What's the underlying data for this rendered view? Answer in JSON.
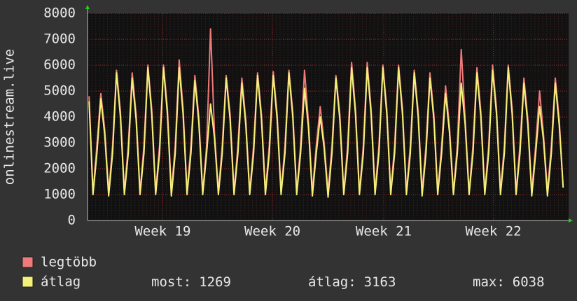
{
  "chart_data": {
    "type": "line",
    "y_label": "onlinestream.live",
    "x": [
      0.1,
      0.35,
      0.6,
      0.85,
      1.1,
      1.35,
      1.6,
      1.85,
      2.1,
      2.35,
      2.6,
      2.85,
      3.1,
      3.35,
      3.6,
      3.85,
      4.1,
      4.35,
      4.6,
      4.85,
      5.1,
      5.35,
      5.6,
      5.85,
      6.1,
      6.35,
      6.6,
      6.85,
      7.1,
      7.35,
      7.6,
      7.85,
      8.1,
      8.35,
      8.6,
      8.85,
      9.1,
      9.35,
      9.6,
      9.85,
      10.1,
      10.35,
      10.6,
      10.85,
      11.1,
      11.35,
      11.6,
      11.85,
      12.1,
      12.35,
      12.6,
      12.85,
      13.1,
      13.35,
      13.6,
      13.85,
      14.1,
      14.35,
      14.6,
      14.85,
      15.1,
      15.35,
      15.6,
      15.85,
      16.1,
      16.35,
      16.6,
      16.85,
      17.1,
      17.35,
      17.6,
      17.85,
      18.1,
      18.35,
      18.6,
      18.85,
      19.1,
      19.35,
      19.6,
      19.85,
      20.1,
      20.35,
      20.6,
      20.85,
      21.1,
      21.35,
      21.6,
      21.85,
      22.1,
      22.35,
      22.6,
      22.85,
      23.1,
      23.35,
      23.6,
      23.85,
      24.1,
      24.35,
      24.6,
      24.85,
      25.1,
      25.35,
      25.6,
      25.85,
      26.1,
      26.35,
      26.6,
      26.85,
      27.1,
      27.35,
      27.6,
      27.85,
      28.1,
      28.35,
      28.6,
      28.85,
      29.1,
      29.35,
      29.6,
      29.85,
      30.1,
      30.35
    ],
    "series": [
      {
        "name": "legtöbb",
        "color": "#f07a7a",
        "values": [
          4800,
          1100,
          2900,
          4900,
          3500,
          1100,
          2900,
          5800,
          4200,
          1100,
          2900,
          5700,
          4100,
          1100,
          2900,
          6000,
          4300,
          1100,
          2900,
          6000,
          4300,
          1100,
          2900,
          6200,
          4300,
          1100,
          2900,
          5600,
          4000,
          1100,
          2900,
          7400,
          3400,
          1100,
          2900,
          5600,
          4100,
          1100,
          2900,
          5500,
          3900,
          1100,
          2900,
          5700,
          4100,
          1100,
          2900,
          5750,
          4100,
          1100,
          2900,
          5800,
          4200,
          1100,
          2900,
          5800,
          3800,
          1100,
          2900,
          4400,
          3000,
          1100,
          2900,
          5600,
          4100,
          1100,
          2900,
          6100,
          4300,
          1100,
          2900,
          6100,
          4300,
          1100,
          2900,
          6000,
          4300,
          1100,
          2900,
          6000,
          4300,
          1100,
          2900,
          5800,
          4200,
          1100,
          2900,
          5700,
          4100,
          1100,
          2900,
          5200,
          3600,
          1100,
          2900,
          6600,
          3900,
          1100,
          2900,
          5900,
          4200,
          1100,
          2900,
          6000,
          4300,
          1100,
          2900,
          6000,
          4300,
          1100,
          2900,
          5500,
          3900,
          1100,
          2900,
          5000,
          3300,
          1100,
          2900,
          5500,
          3900,
          1300
        ]
      },
      {
        "name": "átlag",
        "color": "#f4f07a",
        "values": [
          4600,
          1000,
          2600,
          4700,
          3300,
          950,
          2600,
          5700,
          4000,
          1000,
          2600,
          5500,
          3900,
          1000,
          2600,
          5900,
          4100,
          1000,
          2600,
          5900,
          4100,
          950,
          2600,
          5900,
          4100,
          1000,
          2600,
          5400,
          3800,
          1000,
          2600,
          4500,
          3200,
          1000,
          2600,
          5500,
          3900,
          1000,
          2600,
          5300,
          3700,
          1000,
          2600,
          5600,
          3900,
          1000,
          2600,
          5600,
          3900,
          1000,
          2600,
          5700,
          4000,
          1000,
          2600,
          5100,
          3600,
          950,
          2600,
          4000,
          2800,
          900,
          2600,
          5500,
          3900,
          1000,
          2600,
          5900,
          4100,
          1000,
          2600,
          5900,
          4100,
          1000,
          2600,
          5900,
          4100,
          1000,
          2600,
          5900,
          4100,
          1000,
          2600,
          5700,
          4000,
          950,
          2600,
          5500,
          3900,
          1000,
          2600,
          4900,
          3400,
          1000,
          2600,
          5300,
          3700,
          1000,
          2600,
          5700,
          4000,
          1000,
          2600,
          5800,
          4100,
          1000,
          2600,
          5900,
          4100,
          1000,
          2600,
          5300,
          3700,
          950,
          2600,
          4400,
          3100,
          950,
          2600,
          5300,
          3700,
          1269
        ]
      }
    ],
    "xlim": [
      0,
      30.7
    ],
    "xticks": [
      {
        "value": 4.8,
        "label": "Week 19"
      },
      {
        "value": 11.8,
        "label": "Week 20"
      },
      {
        "value": 18.9,
        "label": "Week 21"
      },
      {
        "value": 25.9,
        "label": "Week 22"
      }
    ],
    "ylim": [
      0,
      8000
    ],
    "yticks": [
      0,
      1000,
      2000,
      3000,
      4000,
      5000,
      6000,
      7000,
      8000
    ],
    "grid": true,
    "stats": [
      {
        "label": "most:",
        "value": 1269
      },
      {
        "label": "átlag:",
        "value": 3163
      },
      {
        "label": "max:",
        "value": 6038
      }
    ]
  }
}
